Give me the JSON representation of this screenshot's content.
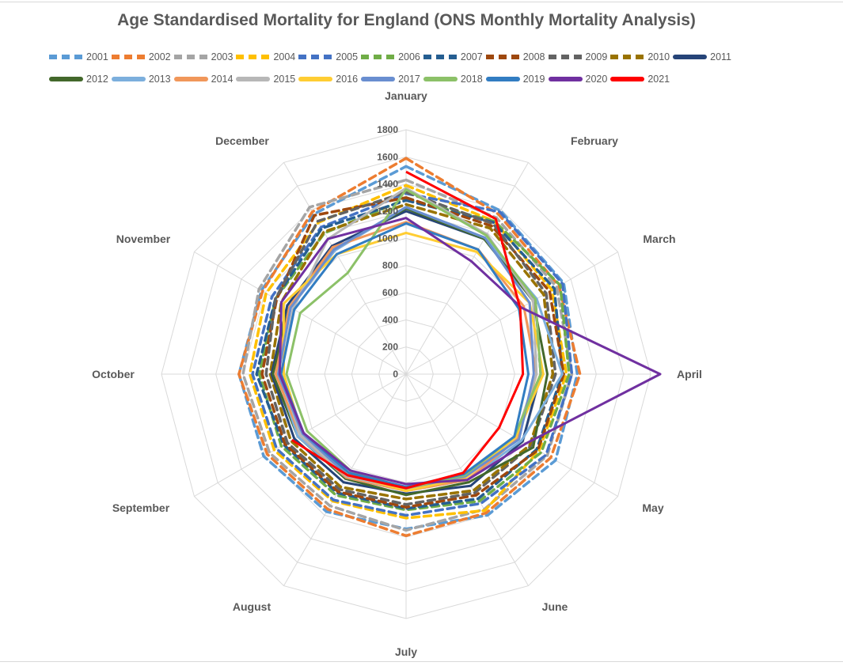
{
  "chart_data": {
    "type": "radar",
    "title": "Age Standardised Mortality for England (ONS Monthly Mortality Analysis)",
    "categories": [
      "January",
      "February",
      "March",
      "April",
      "May",
      "June",
      "July",
      "August",
      "September",
      "October",
      "November",
      "December"
    ],
    "rlim": [
      0,
      1800
    ],
    "ticks": [
      "0",
      "200",
      "400",
      "600",
      "800",
      "1000",
      "1200",
      "1400",
      "1600",
      "1800"
    ],
    "tick_values": [
      0,
      200,
      400,
      600,
      800,
      1000,
      1200,
      1400,
      1600,
      1800
    ],
    "grid": true,
    "legend_position": "top",
    "series": [
      {
        "name": "2001",
        "color": "#5b9bd5",
        "dashed": true,
        "values": [
          1530,
          1390,
          1340,
          1260,
          1270,
          1200,
          1140,
          1170,
          1210,
          1230,
          1230,
          1360
        ]
      },
      {
        "name": "2002",
        "color": "#ed7d31",
        "dashed": true,
        "values": [
          1590,
          1360,
          1300,
          1280,
          1230,
          1180,
          1190,
          1150,
          1180,
          1230,
          1220,
          1380
        ]
      },
      {
        "name": "2003",
        "color": "#a5a5a5",
        "dashed": true,
        "values": [
          1430,
          1330,
          1280,
          1220,
          1200,
          1150,
          1150,
          1120,
          1160,
          1200,
          1250,
          1420
        ]
      },
      {
        "name": "2004",
        "color": "#ffc000",
        "dashed": true,
        "values": [
          1390,
          1300,
          1240,
          1180,
          1130,
          1160,
          1060,
          1080,
          1120,
          1150,
          1190,
          1290
        ]
      },
      {
        "name": "2005",
        "color": "#4472c4",
        "dashed": true,
        "values": [
          1330,
          1380,
          1330,
          1220,
          1190,
          1100,
          1040,
          1070,
          1100,
          1130,
          1140,
          1250
        ]
      },
      {
        "name": "2006",
        "color": "#70ad47",
        "dashed": true,
        "values": [
          1290,
          1300,
          1310,
          1200,
          1150,
          1080,
          1000,
          1030,
          1060,
          1080,
          1110,
          1200
        ]
      },
      {
        "name": "2007",
        "color": "#255e91",
        "dashed": true,
        "values": [
          1280,
          1290,
          1260,
          1150,
          1110,
          1060,
          990,
          1010,
          1040,
          1100,
          1110,
          1240
        ]
      },
      {
        "name": "2008",
        "color": "#9e480e",
        "dashed": true,
        "values": [
          1300,
          1260,
          1220,
          1160,
          1120,
          1030,
          980,
          1000,
          1030,
          1060,
          1100,
          1350
        ]
      },
      {
        "name": "2009",
        "color": "#636363",
        "dashed": true,
        "values": [
          1340,
          1280,
          1190,
          1100,
          1060,
          1010,
          960,
          980,
          1010,
          1030,
          1110,
          1300
        ]
      },
      {
        "name": "2010",
        "color": "#997300",
        "dashed": true,
        "values": [
          1250,
          1240,
          1170,
          1080,
          1050,
          990,
          920,
          960,
          980,
          1000,
          1060,
          1210
        ]
      },
      {
        "name": "2011",
        "color": "#264478",
        "dashed": true,
        "solid": true,
        "values": [
          1200,
          1150,
          1100,
          990,
          990,
          950,
          880,
          920,
          950,
          990,
          1010,
          1090
        ]
      },
      {
        "name": "2012",
        "color": "#43682b",
        "solid": true,
        "values": [
          1220,
          1150,
          1080,
          1040,
          1080,
          920,
          890,
          890,
          920,
          980,
          990,
          1060
        ]
      },
      {
        "name": "2013",
        "color": "#7cafdd",
        "solid": true,
        "values": [
          1230,
          1160,
          1110,
          1150,
          980,
          900,
          860,
          880,
          920,
          950,
          980,
          1050
        ]
      },
      {
        "name": "2014",
        "color": "#f1975a",
        "solid": true,
        "values": [
          1120,
          1060,
          1000,
          960,
          950,
          900,
          860,
          880,
          900,
          960,
          990,
          1080
        ]
      },
      {
        "name": "2015",
        "color": "#b7b7b7",
        "solid": true,
        "values": [
          1370,
          1190,
          1080,
          960,
          930,
          880,
          850,
          870,
          900,
          920,
          960,
          1150
        ]
      },
      {
        "name": "2016",
        "color": "#ffcd33",
        "solid": true,
        "values": [
          1040,
          1040,
          1050,
          1010,
          930,
          880,
          860,
          850,
          880,
          900,
          1040,
          1020
        ]
      },
      {
        "name": "2017",
        "color": "#698ed0",
        "solid": true,
        "values": [
          1230,
          1160,
          1050,
          940,
          960,
          870,
          840,
          860,
          880,
          940,
          980,
          1060
        ]
      },
      {
        "name": "2018",
        "color": "#8cc168",
        "solid": true,
        "values": [
          1360,
          1180,
          1100,
          990,
          920,
          860,
          840,
          820,
          840,
          880,
          900,
          860
        ]
      },
      {
        "name": "2019",
        "color": "#327dc2",
        "solid": true,
        "values": [
          1110,
          1060,
          960,
          900,
          920,
          850,
          830,
          840,
          870,
          920,
          950,
          1020
        ]
      },
      {
        "name": "2020",
        "color": "#7030a0",
        "solid": true,
        "values": [
          1150,
          960,
          980,
          1870,
          1020,
          900,
          810,
          820,
          870,
          930,
          1060,
          1150
        ]
      },
      {
        "name": "2021",
        "color": "#ff0000",
        "solid": true,
        "values": [
          1490,
          1320,
          970,
          860,
          790,
          840,
          840,
          860,
          970,
          0,
          0,
          0
        ],
        "partial_months": 9
      }
    ]
  }
}
